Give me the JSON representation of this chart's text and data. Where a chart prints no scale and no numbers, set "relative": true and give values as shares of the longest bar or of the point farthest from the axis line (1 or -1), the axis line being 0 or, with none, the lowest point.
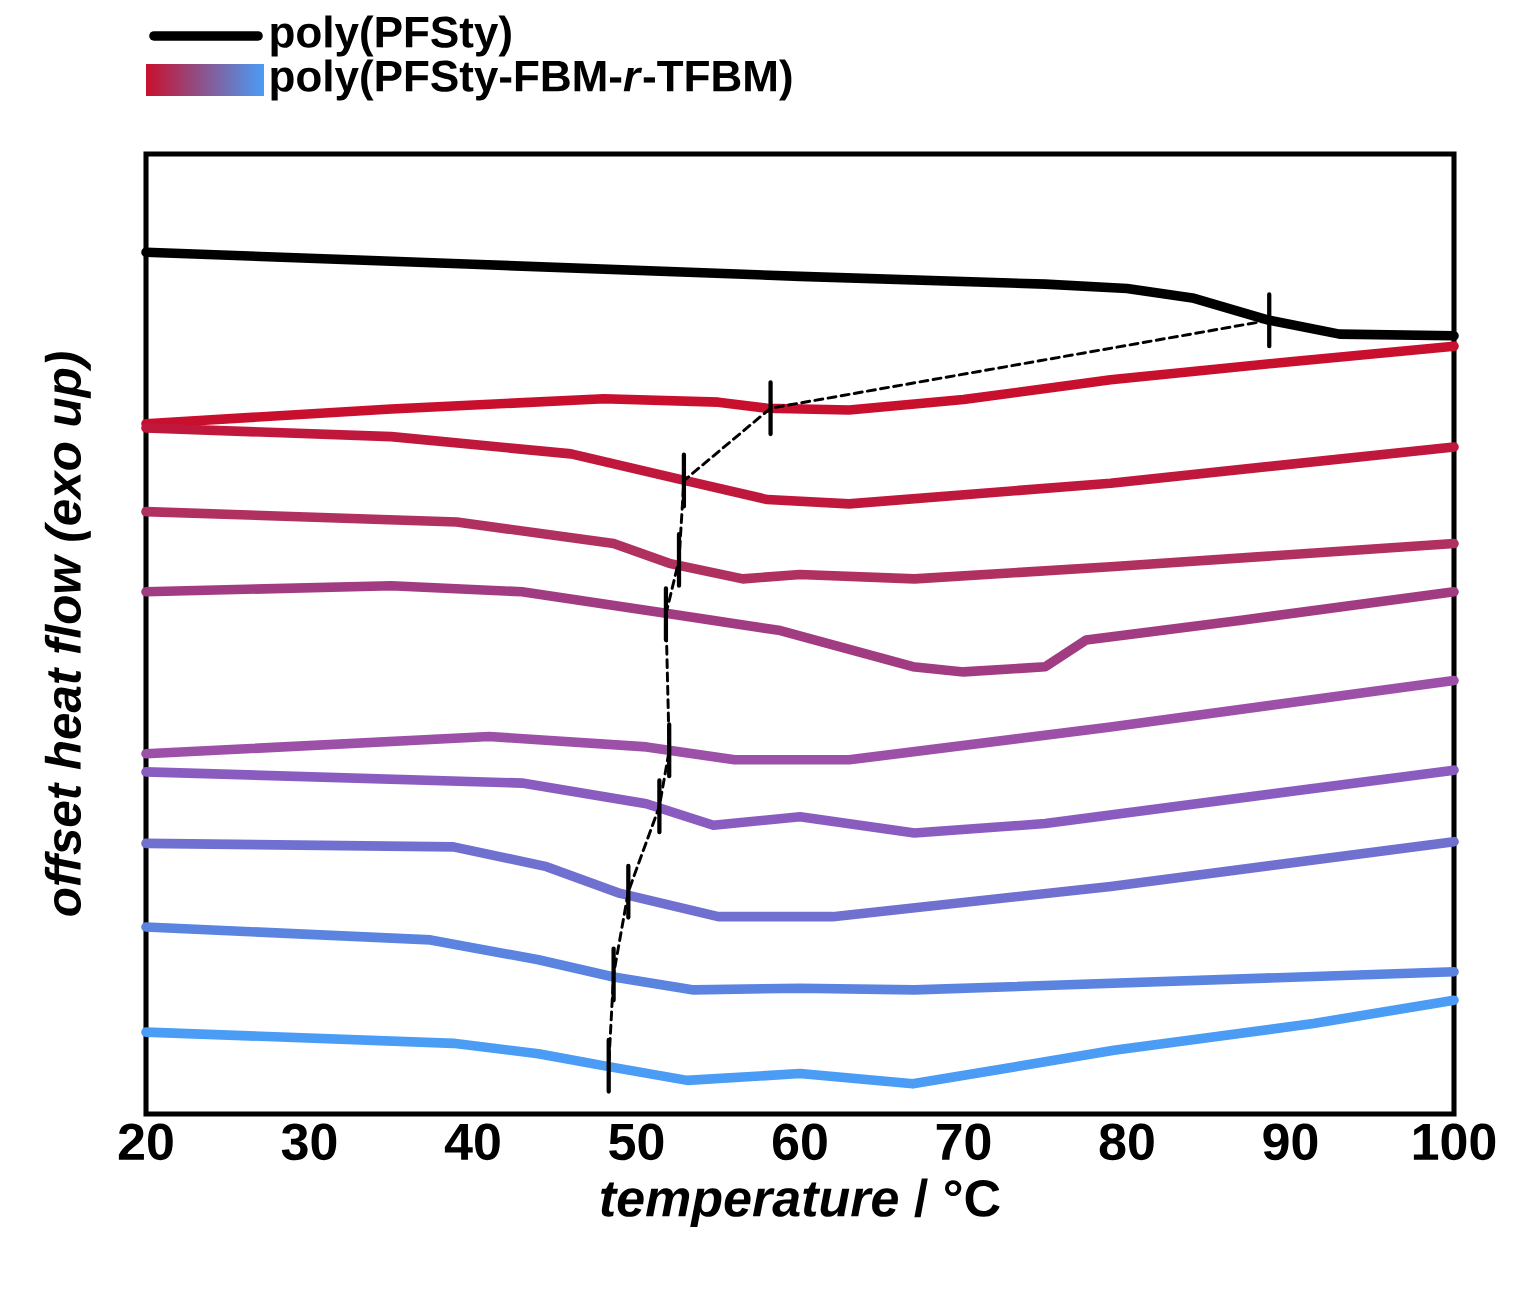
{
  "chart_data": {
    "type": "line",
    "relative": true,
    "xlabel": "*temperature* / °C",
    "ylabel": "offset heat flow (exo up)",
    "xlim": [
      20,
      100
    ],
    "xticks": [
      20,
      30,
      40,
      50,
      60,
      70,
      80,
      90,
      100
    ],
    "legend": "top left",
    "line_style": "solid",
    "series": [
      {
        "name": "poly(PFSty)",
        "color": "#000000",
        "x": [
          20,
          40,
          60,
          75,
          80,
          84,
          88.7,
          93,
          100
        ],
        "values": [
          1.0,
          0.986,
          0.972,
          0.963,
          0.958,
          0.947,
          0.921,
          0.905,
          0.903
        ]
      },
      {
        "name": "poly(PFSty-FBM-*r*-TFBM)",
        "color": "#c8102e",
        "x": [
          20,
          35,
          48,
          55,
          58,
          63,
          70,
          79,
          90,
          100
        ],
        "values": [
          0.801,
          0.818,
          0.83,
          0.826,
          0.819,
          0.817,
          0.829,
          0.852,
          0.873,
          0.891
        ]
      },
      {
        "color": "#c0183c",
        "x": [
          20,
          35,
          46,
          53,
          58,
          63,
          79,
          100
        ],
        "values": [
          0.796,
          0.786,
          0.766,
          0.735,
          0.713,
          0.708,
          0.732,
          0.774
        ]
      },
      {
        "color": "#b03060",
        "x": [
          20,
          39,
          48.6,
          52,
          56.5,
          60,
          67,
          79,
          100
        ],
        "values": [
          0.699,
          0.687,
          0.662,
          0.639,
          0.621,
          0.626,
          0.621,
          0.635,
          0.662
        ]
      },
      {
        "color": "#a23c82",
        "x": [
          20,
          35,
          43,
          51.8,
          58.8,
          66.9,
          70,
          75,
          77.5,
          87,
          100
        ],
        "values": [
          0.606,
          0.613,
          0.606,
          0.581,
          0.561,
          0.519,
          0.513,
          0.519,
          0.55,
          0.573,
          0.606
        ]
      },
      {
        "color": "#9c50a8",
        "x": [
          20,
          41,
          50.6,
          56,
          63,
          79,
          100
        ],
        "values": [
          0.418,
          0.438,
          0.426,
          0.411,
          0.411,
          0.449,
          0.503
        ]
      },
      {
        "color": "#8a5cc0",
        "x": [
          20,
          43,
          50.6,
          54.7,
          60,
          67,
          75,
          100
        ],
        "values": [
          0.397,
          0.384,
          0.36,
          0.335,
          0.345,
          0.326,
          0.337,
          0.399
        ]
      },
      {
        "color": "#7070d0",
        "x": [
          20,
          38.8,
          44.5,
          49,
          55,
          62,
          79,
          100
        ],
        "values": [
          0.314,
          0.31,
          0.287,
          0.256,
          0.229,
          0.229,
          0.264,
          0.316
        ]
      },
      {
        "color": "#5a84e0",
        "x": [
          20,
          37.4,
          44,
          48.6,
          53.5,
          60,
          67,
          100
        ],
        "values": [
          0.217,
          0.202,
          0.179,
          0.159,
          0.144,
          0.146,
          0.144,
          0.165
        ]
      },
      {
        "color": "#4a9cf4",
        "x": [
          20,
          38.8,
          44,
          48.3,
          53.1,
          60,
          66.9,
          79.2,
          91.4,
          100
        ],
        "values": [
          0.095,
          0.082,
          0.07,
          0.055,
          0.039,
          0.047,
          0.035,
          0.074,
          0.105,
          0.132
        ]
      },
      {
        "color": "#000000",
        "line_style": "dashed",
        "x": [
          88.7,
          58.2,
          52.9,
          52.6,
          51.8,
          52.0,
          51.4,
          49.5,
          48.6,
          48.3
        ],
        "values": [
          0.921,
          0.819,
          0.735,
          0.643,
          0.58,
          0.422,
          0.357,
          0.258,
          0.162,
          0.056
        ]
      },
      {
        "color": "#000000",
        "line_style": "solid",
        "x": [
          88.7,
          88.7,
          null,
          58.2,
          58.2,
          null,
          52.9,
          52.9,
          null,
          52.6,
          52.6,
          null,
          51.8,
          51.8,
          null,
          52.0,
          52.0,
          null,
          51.4,
          51.4,
          null,
          49.5,
          49.5,
          null,
          48.6,
          48.6,
          null,
          48.3,
          48.3
        ],
        "values": [
          0.891,
          0.951,
          null,
          0.789,
          0.849,
          null,
          0.705,
          0.765,
          null,
          0.613,
          0.673,
          null,
          0.55,
          0.61,
          null,
          0.392,
          0.452,
          null,
          0.327,
          0.387,
          null,
          0.228,
          0.288,
          null,
          0.132,
          0.192,
          null,
          0.026,
          0.086
        ]
      }
    ]
  }
}
